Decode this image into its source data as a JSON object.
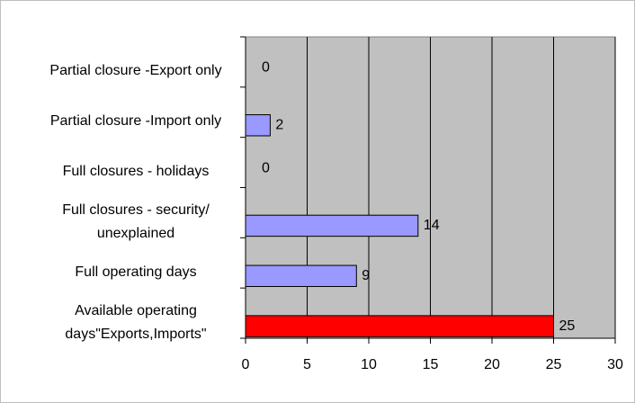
{
  "chart_data": {
    "type": "bar",
    "orientation": "horizontal",
    "categories": [
      "Partial closure -Export only",
      "Partial closure -Import only",
      "Full closures - holidays",
      "Full closures - security/ unexplained",
      "Full operating days",
      "Available operating days\"Exports,Imports\""
    ],
    "values": [
      0,
      2,
      0,
      14,
      9,
      25
    ],
    "colors": [
      "#9999ff",
      "#9999ff",
      "#9999ff",
      "#9999ff",
      "#9999ff",
      "#ff0000"
    ],
    "xlim": [
      0,
      30
    ],
    "xticks": [
      0,
      5,
      10,
      15,
      20,
      25,
      30
    ],
    "grid": true,
    "plot_background": "#c0c0c0"
  }
}
